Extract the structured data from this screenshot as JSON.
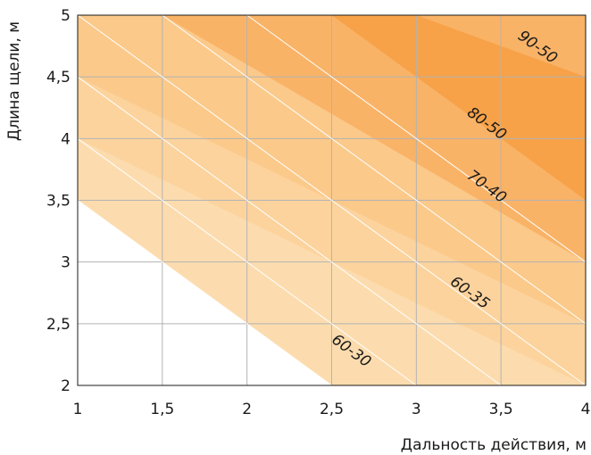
{
  "chart_data": {
    "type": "area",
    "xlabel": "Дальность действия, м",
    "ylabel": "Длина щели, м",
    "xlim": [
      1,
      4
    ],
    "ylim": [
      2,
      5
    ],
    "grid": true,
    "x_ticks": [
      {
        "value": 1,
        "label": "1"
      },
      {
        "value": 1.5,
        "label": "1,5"
      },
      {
        "value": 2,
        "label": "2"
      },
      {
        "value": 2.5,
        "label": "2,5"
      },
      {
        "value": 3,
        "label": "3"
      },
      {
        "value": 3.5,
        "label": "3,5"
      },
      {
        "value": 4,
        "label": "4"
      }
    ],
    "y_ticks": [
      {
        "value": 2,
        "label": "2"
      },
      {
        "value": 2.5,
        "label": "2,5"
      },
      {
        "value": 3,
        "label": "3"
      },
      {
        "value": 3.5,
        "label": "3,5"
      },
      {
        "value": 4,
        "label": "4"
      },
      {
        "value": 4.5,
        "label": "4,5"
      },
      {
        "value": 5,
        "label": "5"
      }
    ],
    "bands": [
      {
        "label": "60-30",
        "color": "#fcdcae",
        "label_at": [
          2.6,
          2.25
        ]
      },
      {
        "label": "60-35",
        "color": "#fcd39d",
        "label_at": [
          3.3,
          2.72
        ]
      },
      {
        "label": "70-40",
        "color": "#fbc98a",
        "label_at": [
          3.4,
          3.58
        ]
      },
      {
        "label": "80-50",
        "color": "#f9b367",
        "label_at": [
          3.4,
          4.09
        ]
      },
      {
        "label": "90-50",
        "color": "#f7a248",
        "label_at": [
          3.7,
          4.71
        ]
      }
    ],
    "boundary_lines": [
      4.5,
      5,
      5.5,
      6,
      6.5,
      7
    ],
    "band_layers": [
      {
        "color": "#fcdcae",
        "corners": [
          [
            1,
            3.5
          ],
          [
            1,
            5
          ],
          [
            4,
            5
          ],
          [
            4,
            2
          ],
          [
            2.5,
            2
          ]
        ]
      },
      {
        "color": "#fcd39d",
        "corners": [
          [
            1,
            4
          ],
          [
            1,
            5
          ],
          [
            4,
            5
          ],
          [
            4,
            2
          ]
        ]
      },
      {
        "color": "#fbc98a",
        "corners": [
          [
            1,
            4.5
          ],
          [
            1,
            5
          ],
          [
            4,
            5
          ],
          [
            4,
            2.5
          ]
        ]
      },
      {
        "color": "#f9b367",
        "corners": [
          [
            1.5,
            5
          ],
          [
            4,
            5
          ],
          [
            4,
            3
          ]
        ]
      },
      {
        "color": "#f7a248",
        "corners": [
          [
            2.5,
            5
          ],
          [
            3,
            5
          ],
          [
            4,
            4.5
          ],
          [
            4,
            3.5
          ]
        ]
      }
    ],
    "colors": {
      "grid": "#b3b3b3",
      "frame": "#1a1a1a",
      "divider": "#ffffff"
    }
  }
}
